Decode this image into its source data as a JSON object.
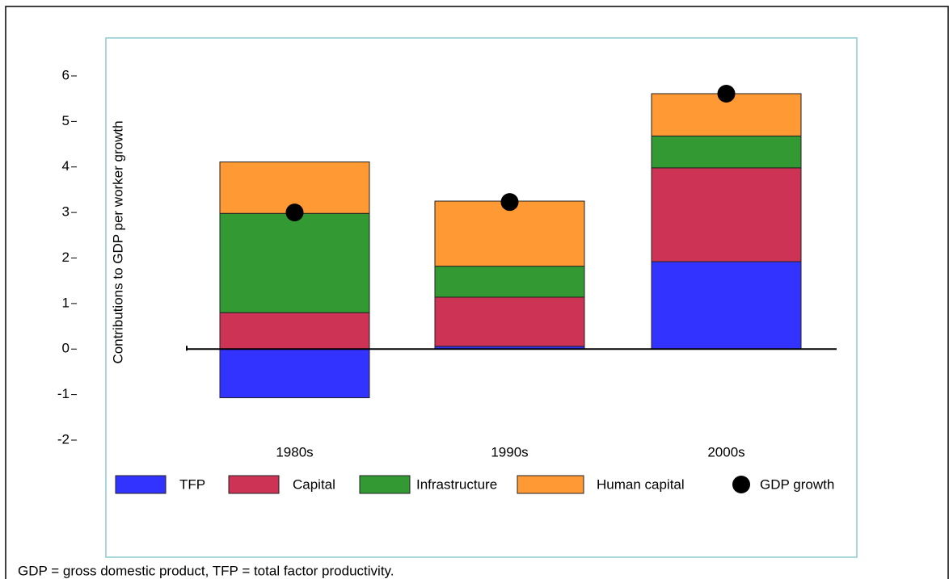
{
  "chart_data": {
    "type": "bar",
    "stacked": true,
    "ylabel": "Contributions to GDP per worker growth",
    "categories": [
      "1980s",
      "1990s",
      "2000s"
    ],
    "series": [
      {
        "name": "TFP",
        "color": "#3333ff",
        "values": [
          -1.07,
          0.06,
          1.92
        ]
      },
      {
        "name": "Capital",
        "color": "#cc3355",
        "values": [
          0.8,
          1.08,
          2.06
        ]
      },
      {
        "name": "Infrastructure",
        "color": "#339933",
        "values": [
          2.18,
          0.68,
          0.7
        ]
      },
      {
        "name": "Human capital",
        "color": "#ff9933",
        "values": [
          1.13,
          1.43,
          0.93
        ]
      },
      {
        "name": "GDP growth",
        "type": "scatter",
        "color": "#000000",
        "values": [
          3.0,
          3.23,
          5.61
        ]
      }
    ],
    "ylim": [
      -2,
      6
    ],
    "yticks": [
      -2,
      -1,
      0,
      1,
      2,
      3,
      4,
      5,
      6
    ],
    "note": "GDP = gross domestic product, TFP = total factor productivity."
  }
}
